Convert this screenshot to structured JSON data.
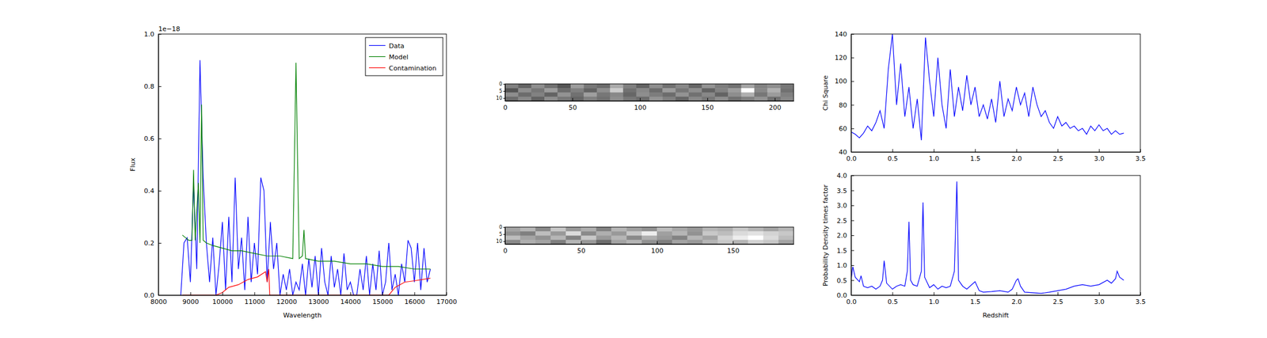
{
  "chart_data": [
    {
      "type": "line",
      "xlabel": "Wavelength",
      "ylabel": "Flux",
      "y_offset_text": "1e−18",
      "xlim": [
        8000,
        17000
      ],
      "xticks": [
        8000,
        9000,
        10000,
        11000,
        12000,
        13000,
        14000,
        15000,
        16000,
        17000
      ],
      "ylim": [
        0,
        1.0
      ],
      "yticks": [
        {
          "value": 0,
          "label": "0.0"
        },
        {
          "value": 0.2,
          "label": "0.2"
        },
        {
          "value": 0.4,
          "label": "0.4"
        },
        {
          "value": 0.6,
          "label": "0.6"
        },
        {
          "value": 0.8,
          "label": "0.8"
        },
        {
          "value": 1.0,
          "label": "1.0"
        }
      ],
      "legend": "upper right",
      "series": [
        {
          "name": "Data",
          "color": "#0000ff",
          "x": [
            8700,
            8800,
            8900,
            9000,
            9100,
            9200,
            9300,
            9400,
            9500,
            9600,
            9700,
            9800,
            9900,
            10000,
            10100,
            10200,
            10300,
            10400,
            10500,
            10600,
            10700,
            10800,
            10900,
            11000,
            11100,
            11200,
            11300,
            11400,
            11500,
            11600,
            11700,
            11800,
            11900,
            12000,
            12100,
            12200,
            12300,
            12400,
            12500,
            12600,
            12700,
            12800,
            12900,
            13000,
            13100,
            13200,
            13300,
            13400,
            13500,
            13600,
            13700,
            13800,
            13900,
            14000,
            14100,
            14200,
            14300,
            14400,
            14500,
            14600,
            14700,
            14800,
            14900,
            15000,
            15100,
            15200,
            15300,
            15400,
            15500,
            15600,
            15700,
            15800,
            15900,
            16000,
            16100,
            16200,
            16300,
            16400,
            16500
          ],
          "values": [
            0.0,
            0.2,
            0.22,
            0.05,
            0.43,
            0.1,
            0.9,
            0.45,
            0.2,
            0.05,
            0.22,
            0.0,
            0.12,
            0.28,
            0.02,
            0.3,
            0.05,
            0.45,
            0.1,
            0.22,
            0.02,
            0.3,
            0.05,
            0.2,
            0.08,
            0.45,
            0.4,
            0.05,
            0.28,
            0.1,
            0.2,
            0.0,
            0.08,
            0.02,
            0.1,
            0.0,
            0.05,
            0.02,
            0.12,
            0.0,
            0.14,
            0.03,
            0.15,
            0.0,
            0.18,
            0.05,
            0.0,
            0.15,
            0.03,
            0.1,
            0.0,
            0.16,
            0.02,
            0.05,
            0.0,
            0.0,
            0.1,
            0.02,
            0.15,
            0.0,
            0.12,
            0.02,
            0.17,
            0.0,
            0.05,
            0.2,
            0.02,
            0.08,
            0.0,
            0.12,
            0.05,
            0.21,
            0.18,
            0.05,
            0.2,
            0.02,
            0.18,
            0.05,
            0.1
          ]
        },
        {
          "name": "Model",
          "color": "#008000",
          "x": [
            8750,
            8850,
            8950,
            9050,
            9100,
            9150,
            9250,
            9300,
            9350,
            9400,
            9500,
            9700,
            10000,
            10300,
            10600,
            11000,
            11400,
            11800,
            12200,
            12300,
            12400,
            12500,
            12550,
            12600,
            13000,
            13500,
            14000,
            14500,
            15000,
            15500,
            16000,
            16500
          ],
          "values": [
            0.23,
            0.22,
            0.21,
            0.21,
            0.48,
            0.21,
            0.43,
            0.2,
            0.73,
            0.21,
            0.2,
            0.19,
            0.18,
            0.17,
            0.17,
            0.16,
            0.15,
            0.15,
            0.14,
            0.89,
            0.14,
            0.15,
            0.25,
            0.14,
            0.13,
            0.13,
            0.12,
            0.12,
            0.11,
            0.11,
            0.1,
            0.1
          ]
        },
        {
          "name": "Contamination",
          "color": "#ff0000",
          "x": [
            8750,
            9800,
            10000,
            10200,
            10500,
            10800,
            11100,
            11350,
            11400,
            11450,
            11480,
            12000,
            13000,
            15200,
            15400,
            15700,
            16000,
            16500
          ],
          "values": [
            0.0,
            0.0,
            0.01,
            0.03,
            0.04,
            0.06,
            0.07,
            0.09,
            0.05,
            0.1,
            0.0,
            0.0,
            0.0,
            0.0,
            0.03,
            0.05,
            0.055,
            0.065
          ]
        }
      ]
    },
    {
      "type": "heatmap",
      "xlim": [
        0,
        214
      ],
      "xticks": [
        0,
        50,
        100,
        150,
        200
      ],
      "ylim": [
        0,
        12
      ],
      "yticks": [
        0,
        5,
        10
      ],
      "cells": [
        [
          0.45,
          0.35,
          0.5,
          0.4,
          0.3,
          0.55,
          0.42,
          0.38,
          0.6,
          0.45,
          0.35,
          0.5,
          0.4,
          0.48,
          0.36,
          0.52,
          0.44,
          0.4,
          0.58,
          0.46,
          0.5,
          0.42
        ],
        [
          0.3,
          0.5,
          0.42,
          0.55,
          0.38,
          0.45,
          0.35,
          0.5,
          0.72,
          0.4,
          0.48,
          0.38,
          0.55,
          0.42,
          0.5,
          0.35,
          0.46,
          0.55,
          0.9,
          0.48,
          0.62,
          0.4
        ],
        [
          0.5,
          0.38,
          0.46,
          0.35,
          0.52,
          0.4,
          0.56,
          0.42,
          0.48,
          0.36,
          0.5,
          0.44,
          0.38,
          0.52,
          0.4,
          0.48,
          0.35,
          0.5,
          0.62,
          0.42,
          0.55,
          0.45
        ],
        [
          0.38,
          0.48,
          0.35,
          0.5,
          0.42,
          0.36,
          0.45,
          0.4,
          0.5,
          0.42,
          0.38,
          0.52,
          0.45,
          0.36,
          0.48,
          0.42,
          0.5,
          0.4,
          0.46,
          0.52,
          0.4,
          0.48
        ]
      ]
    },
    {
      "type": "heatmap",
      "xlim": [
        0,
        190
      ],
      "xticks": [
        0,
        50,
        100,
        150
      ],
      "ylim": [
        0,
        12
      ],
      "yticks": [
        0,
        5,
        10
      ],
      "cells": [
        [
          0.45,
          0.5,
          0.38,
          0.55,
          0.42,
          0.48,
          0.36,
          0.5,
          0.44,
          0.4,
          0.52,
          0.46,
          0.42,
          0.5,
          0.48,
          0.55,
          0.5,
          0.45,
          0.5
        ],
        [
          0.4,
          0.35,
          0.52,
          0.42,
          0.6,
          0.38,
          0.48,
          0.42,
          0.55,
          0.65,
          0.44,
          0.5,
          0.4,
          0.55,
          0.52,
          0.6,
          0.62,
          0.58,
          0.55
        ],
        [
          0.52,
          0.45,
          0.4,
          0.5,
          0.36,
          0.55,
          0.42,
          0.5,
          0.38,
          0.48,
          0.42,
          0.36,
          0.5,
          0.45,
          0.58,
          0.65,
          0.7,
          0.6,
          0.52
        ],
        [
          0.38,
          0.48,
          0.45,
          0.35,
          0.5,
          0.42,
          0.3,
          0.45,
          0.5,
          0.4,
          0.35,
          0.45,
          0.42,
          0.5,
          0.55,
          0.5,
          0.58,
          0.55,
          0.45
        ]
      ]
    },
    {
      "type": "line",
      "ylabel": "Chi Square",
      "xlim": [
        0,
        3.5
      ],
      "xticks": [
        {
          "value": 0,
          "label": "0.0"
        },
        {
          "value": 0.5,
          "label": "0.5"
        },
        {
          "value": 1.0,
          "label": "1.0"
        },
        {
          "value": 1.5,
          "label": "1.5"
        },
        {
          "value": 2.0,
          "label": "2.0"
        },
        {
          "value": 2.5,
          "label": "2.5"
        },
        {
          "value": 3.0,
          "label": "3.0"
        },
        {
          "value": 3.5,
          "label": "3.5"
        }
      ],
      "ylim": [
        40,
        140
      ],
      "yticks": [
        40,
        60,
        80,
        100,
        120,
        140
      ],
      "series": [
        {
          "color": "#0000ff",
          "x": [
            0.0,
            0.05,
            0.1,
            0.15,
            0.2,
            0.25,
            0.3,
            0.35,
            0.4,
            0.45,
            0.5,
            0.55,
            0.6,
            0.65,
            0.7,
            0.75,
            0.8,
            0.85,
            0.9,
            0.95,
            1.0,
            1.05,
            1.1,
            1.15,
            1.2,
            1.25,
            1.3,
            1.35,
            1.4,
            1.45,
            1.5,
            1.55,
            1.6,
            1.65,
            1.7,
            1.75,
            1.8,
            1.85,
            1.9,
            1.95,
            2.0,
            2.05,
            2.1,
            2.15,
            2.2,
            2.25,
            2.3,
            2.35,
            2.4,
            2.45,
            2.5,
            2.55,
            2.6,
            2.65,
            2.7,
            2.75,
            2.8,
            2.85,
            2.9,
            2.95,
            3.0,
            3.05,
            3.1,
            3.15,
            3.2,
            3.25,
            3.3
          ],
          "values": [
            57,
            55,
            52,
            56,
            62,
            58,
            65,
            75,
            60,
            110,
            140,
            80,
            115,
            70,
            95,
            60,
            85,
            50,
            137,
            100,
            70,
            120,
            80,
            60,
            110,
            70,
            95,
            75,
            105,
            80,
            95,
            70,
            80,
            68,
            85,
            65,
            100,
            70,
            85,
            75,
            95,
            80,
            90,
            70,
            95,
            80,
            70,
            75,
            65,
            60,
            70,
            62,
            65,
            60,
            62,
            58,
            60,
            55,
            62,
            58,
            63,
            58,
            60,
            55,
            58,
            55,
            56
          ]
        }
      ]
    },
    {
      "type": "line",
      "xlabel": "Redshift",
      "ylabel": "Probability Density times factor",
      "xlim": [
        0,
        3.5
      ],
      "xticks": [
        {
          "value": 0,
          "label": "0.0"
        },
        {
          "value": 0.5,
          "label": "0.5"
        },
        {
          "value": 1.0,
          "label": "1.0"
        },
        {
          "value": 1.5,
          "label": "1.5"
        },
        {
          "value": 2.0,
          "label": "2.0"
        },
        {
          "value": 2.5,
          "label": "2.5"
        },
        {
          "value": 3.0,
          "label": "3.0"
        },
        {
          "value": 3.5,
          "label": "3.5"
        }
      ],
      "ylim": [
        0,
        4.0
      ],
      "yticks": [
        {
          "value": 0,
          "label": "0.0"
        },
        {
          "value": 0.5,
          "label": "0.5"
        },
        {
          "value": 1.0,
          "label": "1.0"
        },
        {
          "value": 1.5,
          "label": "1.5"
        },
        {
          "value": 2.0,
          "label": "2.0"
        },
        {
          "value": 2.5,
          "label": "2.5"
        },
        {
          "value": 3.0,
          "label": "3.0"
        },
        {
          "value": 3.5,
          "label": "3.5"
        },
        {
          "value": 4.0,
          "label": "4.0"
        }
      ],
      "series": [
        {
          "color": "#0000ff",
          "x": [
            0.0,
            0.02,
            0.05,
            0.1,
            0.12,
            0.15,
            0.2,
            0.25,
            0.3,
            0.35,
            0.38,
            0.4,
            0.43,
            0.5,
            0.55,
            0.6,
            0.65,
            0.68,
            0.7,
            0.72,
            0.75,
            0.8,
            0.85,
            0.87,
            0.89,
            0.95,
            1.0,
            1.05,
            1.1,
            1.15,
            1.2,
            1.25,
            1.28,
            1.3,
            1.35,
            1.4,
            1.5,
            1.55,
            1.6,
            1.7,
            1.8,
            1.9,
            1.95,
            2.0,
            2.02,
            2.05,
            2.1,
            2.2,
            2.3,
            2.4,
            2.5,
            2.6,
            2.7,
            2.8,
            2.9,
            3.0,
            3.1,
            3.15,
            3.2,
            3.22,
            3.25,
            3.3
          ],
          "values": [
            0.5,
            0.95,
            0.6,
            0.45,
            0.65,
            0.3,
            0.25,
            0.3,
            0.2,
            0.3,
            0.5,
            1.15,
            0.4,
            0.2,
            0.3,
            0.35,
            0.3,
            0.8,
            2.45,
            0.5,
            0.35,
            0.3,
            0.8,
            3.1,
            0.6,
            0.25,
            0.35,
            0.2,
            0.3,
            0.25,
            0.3,
            0.8,
            3.8,
            0.5,
            0.3,
            0.2,
            0.45,
            0.15,
            0.1,
            0.12,
            0.15,
            0.1,
            0.2,
            0.5,
            0.55,
            0.3,
            0.1,
            0.08,
            0.06,
            0.1,
            0.15,
            0.2,
            0.3,
            0.35,
            0.3,
            0.35,
            0.5,
            0.4,
            0.55,
            0.8,
            0.6,
            0.5
          ]
        }
      ]
    }
  ]
}
